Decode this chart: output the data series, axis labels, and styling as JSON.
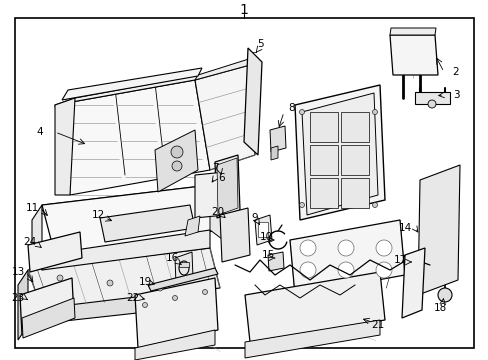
{
  "background_color": "#ffffff",
  "border_color": "#000000",
  "line_color": "#000000",
  "text_color": "#000000",
  "figsize": [
    4.89,
    3.6
  ],
  "dpi": 100,
  "lw_main": 0.9,
  "lw_detail": 0.5,
  "callout_fontsize": 7.5,
  "title_fontsize": 10
}
